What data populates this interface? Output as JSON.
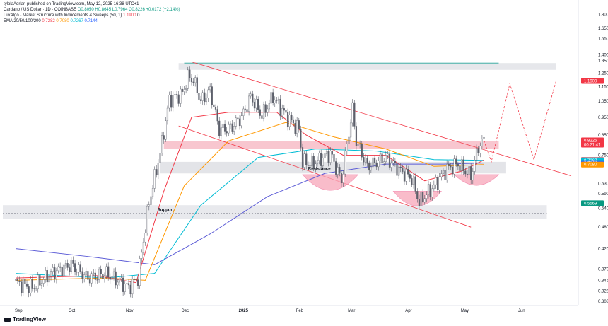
{
  "header": {
    "publisher": "tylolaAdrian published on TradingView.com, May 12, 2025 16:38 UTC+1",
    "symbol": "Cardano / US Dollar · 1D · COINBASE",
    "ohlc": "O0.8050  H0.8645  L0.7964  C0.8226  +0.0172 (+2.14%)",
    "indicator1_name": "LuxAlgo - Market Structure with Inducements & Sweeps (50, 1)",
    "indicator1_value": "1.1900",
    "indicator1_extra": "0",
    "ema_name": "EMA 20/50/100/200",
    "ema_values": [
      "0.7282",
      "0.7080",
      "0.7267",
      "0.7144"
    ]
  },
  "annotations": {
    "support": "Support",
    "resistance": "Resistance"
  },
  "footer": {
    "logo": "TradingView"
  },
  "colors": {
    "up": "#089981",
    "down": "#f23645",
    "candle": "#5d606b",
    "ema20": "#f23645",
    "ema50": "#ff9800",
    "ema100": "#00bcd4",
    "ema200": "#5b5bd6",
    "channel": "#f23645",
    "zone": "#d1d4dc",
    "pinkzone": "#f7a6b8",
    "cup": "#f48fb1"
  },
  "chart_data": {
    "type": "candlestick",
    "title": "Cardano / US Dollar · 1D · COINBASE",
    "scale": "log",
    "ylim": [
      0.295,
      1.9
    ],
    "y_ticks": [
      "1.8000",
      "1.6500",
      "1.5500",
      "1.4000",
      "1.3500",
      "1.2500",
      "1.1500",
      "1.0500",
      "0.9500",
      "0.8500",
      "0.7500",
      "0.6300",
      "0.5900",
      "0.5400",
      "0.4800",
      "0.4200",
      "0.3700",
      "0.3450",
      "0.3230",
      "0.3030"
    ],
    "x_labels": [
      "Sep",
      "Oct",
      "Nov",
      "Dec",
      "2025",
      "Feb",
      "Mar",
      "Apr",
      "May",
      "Jun"
    ],
    "price_badges": [
      {
        "label": "1.1900",
        "value": 1.19,
        "color": "#f23645"
      },
      {
        "label": "0.8226",
        "value": 0.8226,
        "color": "#f23645",
        "sub": "00:21:41"
      },
      {
        "label": "0.7282",
        "value": 0.7282,
        "color": "#f23645"
      },
      {
        "label": "0.7267",
        "value": 0.7267,
        "color": "#00bcd4"
      },
      {
        "label": "0.7144",
        "value": 0.7144,
        "color": "#2962ff"
      },
      {
        "label": "0.7080",
        "value": 0.708,
        "color": "#ff9800"
      },
      {
        "label": "0.5569",
        "value": 0.5569,
        "color": "#089981"
      }
    ],
    "keypoints": [
      {
        "d": "2024-09-01",
        "c": 0.34
      },
      {
        "d": "2024-09-10",
        "c": 0.33
      },
      {
        "d": "2024-09-20",
        "c": 0.36
      },
      {
        "d": "2024-10-01",
        "c": 0.38
      },
      {
        "d": "2024-10-10",
        "c": 0.35
      },
      {
        "d": "2024-10-20",
        "c": 0.36
      },
      {
        "d": "2024-11-01",
        "c": 0.33
      },
      {
        "d": "2024-11-06",
        "c": 0.35
      },
      {
        "d": "2024-11-12",
        "c": 0.56
      },
      {
        "d": "2024-11-18",
        "c": 0.76
      },
      {
        "d": "2024-11-23",
        "c": 1.06
      },
      {
        "d": "2024-11-30",
        "c": 1.1
      },
      {
        "d": "2024-12-03",
        "c": 1.22
      },
      {
        "d": "2024-12-06",
        "c": 1.2
      },
      {
        "d": "2024-12-10",
        "c": 1.05
      },
      {
        "d": "2024-12-15",
        "c": 1.12
      },
      {
        "d": "2024-12-20",
        "c": 0.88
      },
      {
        "d": "2024-12-26",
        "c": 0.89
      },
      {
        "d": "2025-01-01",
        "c": 0.95
      },
      {
        "d": "2025-01-06",
        "c": 1.08
      },
      {
        "d": "2025-01-12",
        "c": 0.96
      },
      {
        "d": "2025-01-18",
        "c": 1.08
      },
      {
        "d": "2025-01-25",
        "c": 0.96
      },
      {
        "d": "2025-02-01",
        "c": 0.88
      },
      {
        "d": "2025-02-03",
        "c": 0.72
      },
      {
        "d": "2025-02-08",
        "c": 0.71
      },
      {
        "d": "2025-02-18",
        "c": 0.76
      },
      {
        "d": "2025-02-24",
        "c": 0.64
      },
      {
        "d": "2025-03-02",
        "c": 1.0
      },
      {
        "d": "2025-03-04",
        "c": 0.82
      },
      {
        "d": "2025-03-10",
        "c": 0.7
      },
      {
        "d": "2025-03-20",
        "c": 0.74
      },
      {
        "d": "2025-03-28",
        "c": 0.68
      },
      {
        "d": "2025-04-03",
        "c": 0.65
      },
      {
        "d": "2025-04-07",
        "c": 0.56
      },
      {
        "d": "2025-04-15",
        "c": 0.62
      },
      {
        "d": "2025-04-22",
        "c": 0.69
      },
      {
        "d": "2025-04-28",
        "c": 0.71
      },
      {
        "d": "2025-05-05",
        "c": 0.66
      },
      {
        "d": "2025-05-09",
        "c": 0.79
      },
      {
        "d": "2025-05-12",
        "c": 0.8226
      }
    ],
    "ema20": [
      [
        "2024-09-01",
        0.35
      ],
      [
        "2024-10-15",
        0.355
      ],
      [
        "2024-11-05",
        0.34
      ],
      [
        "2024-11-20",
        0.6
      ],
      [
        "2024-12-05",
        0.95
      ],
      [
        "2024-12-25",
        0.98
      ],
      [
        "2025-01-20",
        0.98
      ],
      [
        "2025-02-05",
        0.85
      ],
      [
        "2025-02-25",
        0.75
      ],
      [
        "2025-03-20",
        0.75
      ],
      [
        "2025-04-10",
        0.64
      ],
      [
        "2025-04-30",
        0.68
      ],
      [
        "2025-05-12",
        0.7282
      ]
    ],
    "ema50": [
      [
        "2024-09-01",
        0.345
      ],
      [
        "2024-10-20",
        0.35
      ],
      [
        "2024-11-10",
        0.345
      ],
      [
        "2024-12-01",
        0.62
      ],
      [
        "2024-12-25",
        0.82
      ],
      [
        "2025-01-25",
        0.92
      ],
      [
        "2025-02-20",
        0.84
      ],
      [
        "2025-03-20",
        0.78
      ],
      [
        "2025-04-15",
        0.7
      ],
      [
        "2025-05-12",
        0.708
      ]
    ],
    "ema100": [
      [
        "2024-09-01",
        0.36
      ],
      [
        "2024-10-20",
        0.35
      ],
      [
        "2024-11-15",
        0.36
      ],
      [
        "2024-12-10",
        0.55
      ],
      [
        "2025-01-10",
        0.74
      ],
      [
        "2025-02-10",
        0.78
      ],
      [
        "2025-03-15",
        0.77
      ],
      [
        "2025-04-15",
        0.73
      ],
      [
        "2025-05-12",
        0.7267
      ]
    ],
    "ema200": [
      [
        "2024-09-01",
        0.42
      ],
      [
        "2024-10-10",
        0.4
      ],
      [
        "2024-11-15",
        0.38
      ],
      [
        "2024-12-15",
        0.46
      ],
      [
        "2025-01-15",
        0.58
      ],
      [
        "2025-02-15",
        0.67
      ],
      [
        "2025-03-20",
        0.71
      ],
      [
        "2025-04-20",
        0.71
      ],
      [
        "2025-05-12",
        0.7144
      ]
    ],
    "levels": {
      "top_zone": [
        1.275,
        1.33
      ],
      "mid_pink_zone": [
        0.782,
        0.82
      ],
      "resistance_zone": [
        0.67,
        0.72
      ],
      "support_zone": [
        0.505,
        0.55
      ],
      "dashed_support": 0.523
    }
  }
}
